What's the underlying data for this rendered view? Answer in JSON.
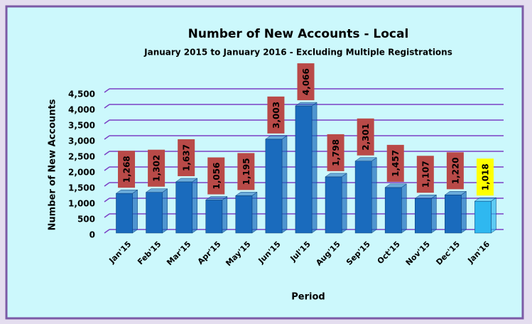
{
  "chart_data": {
    "type": "bar3d",
    "title": "Number of New Accounts - Local",
    "subtitle": "January 2015 to January 2016 - Excluding Multiple Registrations",
    "y_label": "Number of New Accounts",
    "x_label": "Period",
    "categories": [
      "Jan'15",
      "Feb'15",
      "Mar'15",
      "Apr'15",
      "May'15",
      "Jun'15",
      "Jul'15",
      "Aug'15",
      "Sep'15",
      "Oct'15",
      "Nov'15",
      "Dec'15",
      "Jan'16"
    ],
    "values": [
      1268,
      1302,
      1637,
      1056,
      1195,
      3003,
      4066,
      1798,
      2301,
      1457,
      1107,
      1220,
      1018
    ],
    "value_labels": [
      "1,268",
      "1,302",
      "1,637",
      "1,056",
      "1,195",
      "3,003",
      "4,066",
      "1,798",
      "2,301",
      "1,457",
      "1,107",
      "1,220",
      "1,018"
    ],
    "bar_colors": [
      "#1a6bbd",
      "#1a6bbd",
      "#1a6bbd",
      "#1a6bbd",
      "#1a6bbd",
      "#1a6bbd",
      "#1a6bbd",
      "#1a6bbd",
      "#1a6bbd",
      "#1a6bbd",
      "#1a6bbd",
      "#1a6bbd",
      "#2fb8f0"
    ],
    "label_colors": [
      "#b94a48",
      "#b94a48",
      "#b94a48",
      "#b94a48",
      "#b94a48",
      "#b94a48",
      "#b94a48",
      "#b94a48",
      "#b94a48",
      "#b94a48",
      "#b94a48",
      "#b94a48",
      "#ffff00"
    ],
    "ylim": [
      0,
      4500
    ],
    "yticks": [
      0,
      500,
      {
        "value": 1000,
        "label": "1,000"
      },
      {
        "value": 1500,
        "label": "1,500"
      },
      {
        "value": 2000,
        "label": "2,000"
      },
      {
        "value": 2500,
        "label": "2,500"
      },
      {
        "value": 3000,
        "label": "3,000"
      },
      {
        "value": 3500,
        "label": "3,500"
      },
      {
        "value": 4000,
        "label": "4,000"
      },
      {
        "value": 4500,
        "label": "4,500"
      }
    ],
    "grid": true
  }
}
